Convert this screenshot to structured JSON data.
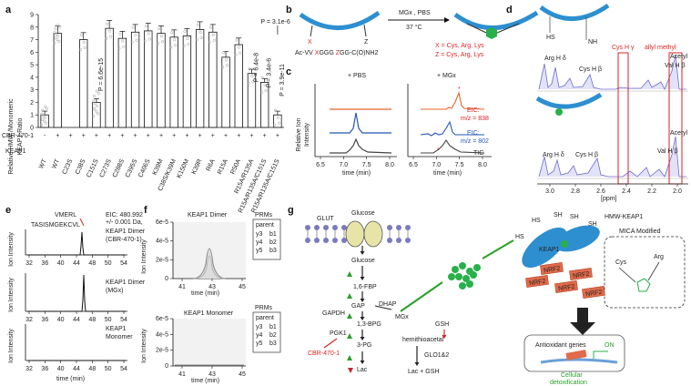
{
  "panel_a": {
    "letter": "a",
    "ylabel_line1": "Relative HMW /Monomeric",
    "ylabel_line2": "KEAP1 Ratio",
    "yticks": [
      "0",
      "1",
      "2",
      "3",
      "4",
      "5",
      "6",
      "7",
      "8",
      "9"
    ],
    "row1_label": "CBR-470-1",
    "row2_label": "KEAP1",
    "treat_signs": [
      "-",
      "+",
      "+",
      "+",
      "+",
      "+",
      "+",
      "+",
      "+",
      "+",
      "+",
      "+",
      "+",
      "+",
      "+",
      "+",
      "+",
      "+",
      "+"
    ],
    "pvalues": [
      "P = 6.6e-15",
      "P = 3.1e-6",
      "P = 6.4e-8",
      "P = 3.4e-6",
      "P = 3.9e-11"
    ],
    "colors": {
      "red": "#d22222",
      "black": "#111111"
    }
  },
  "chart_data": {
    "type": "bar",
    "categories": [
      "WT",
      "WT",
      "C23S",
      "C38S",
      "C151S",
      "C273S",
      "C288S",
      "C395S",
      "C406S",
      "K39M",
      "C38S/K39M",
      "K150M",
      "K39R",
      "R6A",
      "R15A",
      "R50A",
      "R15A/R135A",
      "R15A/R135A/C151S",
      "R15A/R135A/C151S"
    ],
    "values": [
      1.0,
      7.5,
      0,
      7.0,
      2.0,
      7.9,
      7.1,
      7.6,
      7.7,
      7.5,
      7.2,
      7.3,
      7.8,
      7.6,
      5.6,
      6.6,
      4.3,
      3.6,
      1.0
    ],
    "ylabel": "Relative HMW /Monomeric KEAP1 Ratio",
    "ylim": [
      0,
      9
    ]
  },
  "panel_b": {
    "letter": "b",
    "reagent": "MGx , PBS",
    "temp": "37 °C",
    "seq_prefix": "Ac-VV ",
    "seq_x": "X",
    "seq_mid": "GGG ",
    "seq_z": "Z",
    "seq_suffix": "GG-C(O)NH2",
    "x_def": "X = Cys, Arg, Lys",
    "z_def": "Z = Cys, Arg, Lys",
    "x_label": "X",
    "z_label": "Z"
  },
  "panel_c": {
    "letter": "c",
    "left_title": "+ PBS",
    "right_title": "+ MGx",
    "ylabel_line1": "Relative Ion",
    "ylabel_line2": "Intensity",
    "xlabel": "time (min)",
    "xticks_left": [
      "6.5",
      "7.0",
      "7.5",
      "8.0"
    ],
    "xticks_right": [
      "6.5",
      "7.0",
      "7.5",
      "8.0"
    ],
    "eic1": "EIC:",
    "eic1_mz": "m/z = 838",
    "eic2": "EIC:",
    "eic2_mz": "m/z = 802",
    "tic": "TIC",
    "star": "*"
  },
  "panel_d": {
    "letter": "d",
    "labels": [
      "Arg H δ",
      "Cys H γ",
      "allyl methyl",
      "Cys H β",
      "Val H β",
      "Acetyl",
      "Arg H δ",
      "Cys H β",
      "Val H β",
      "Acetyl"
    ],
    "xticks": [
      "3.0",
      "2.8",
      "2.6",
      "2.4",
      "2.2",
      "2.0"
    ],
    "xlabel": "[ppm]"
  },
  "panel_e": {
    "letter": "e",
    "pep1": "VMERL",
    "pep2": "TASISMGEKCVL",
    "eic": "EIC: 480.992",
    "tol": "+/- 0.001 Da,",
    "trace1": "KEAP1 Dimer",
    "trace1b": "(CBR-470-1)",
    "trace2": "KEAP1 Dimer",
    "trace2b": "(MGx)",
    "trace3": "KEAP1",
    "trace3b": "Monomer",
    "ylabel": "Ion Intensity",
    "xticks": [
      "32",
      "36",
      "40",
      "44",
      "48",
      "50",
      "54"
    ],
    "xlabel": "time (min)"
  },
  "panel_f": {
    "letter": "f",
    "title1": "KEAP1 Dimer",
    "title2": "KEAP1 Monomer",
    "yticks": [
      "6e-5",
      "4e-5",
      "2e-5",
      "0"
    ],
    "xticks": [
      "41",
      "43",
      "45"
    ],
    "xlabel": "time (min)",
    "ylabel": "Ion Intensity",
    "prms": "PRMs",
    "legend": [
      "parent",
      "y3",
      "b1",
      "y4",
      "b2",
      "y5",
      "b3"
    ]
  },
  "panel_g": {
    "letter": "g",
    "glut": "GLUT",
    "glucose_top": "Glucose",
    "glucose": "Glucose",
    "f16bp": "1,6-FBP",
    "gap": "GAP",
    "dhap": "DHAP",
    "gapdh": "GAPDH",
    "bpg": "1,3-BPG",
    "mgx": "MGx",
    "gsh": "GSH",
    "pgk1": "PGK1",
    "hemi": "hemithioacetal",
    "pg3": "3-PG",
    "cbr": "CBR-470-1",
    "glo": "GLO1&2",
    "lac": "Lac",
    "lacgsh": "Lac + GSH",
    "hmw": "HMW-KEAP1",
    "keap1": "KEAP1",
    "nrf2": "NRF2",
    "mica": "MICA Modified",
    "cys": "Cys",
    "arg": "Arg",
    "anti": "Antioxidant genes",
    "on": "ON",
    "cellular": "Cellular",
    "detox": "detoxification",
    "sh": "SH",
    "hs": "HS"
  }
}
